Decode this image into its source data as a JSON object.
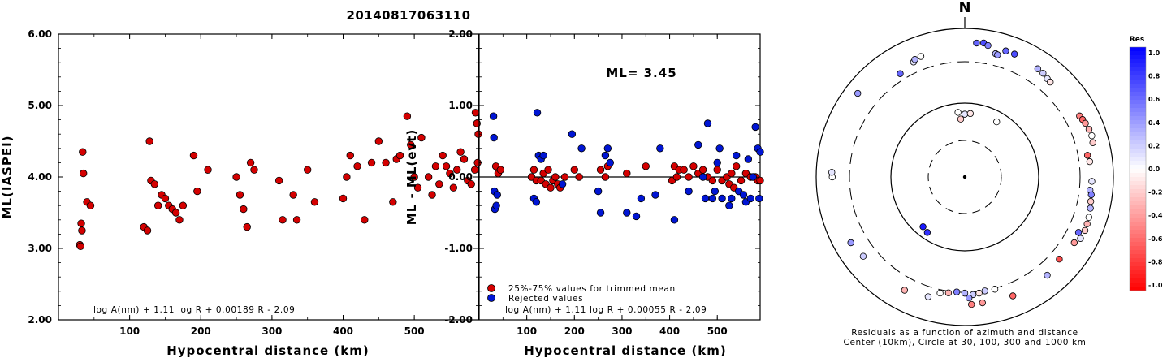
{
  "page_title": "20140817063110",
  "ml_label": "ML= 3.45",
  "colorbar": {
    "title": "Res",
    "ticks": [
      "1.0",
      "0.8",
      "0.6",
      "0.4",
      "0.2",
      "0.0",
      "-0.2",
      "-0.4",
      "-0.6",
      "-0.8",
      "-1.0"
    ]
  },
  "polar": {
    "north_label": "N",
    "caption_line1": "Residuals as a function of azimuth and distance",
    "caption_line2": "Center (10km), Circle at 30, 100, 300 and 1000 km"
  },
  "chart_data": [
    {
      "type": "scatter",
      "xlabel": "Hypocentral distance (km)",
      "ylabel": "ML(IASPEI)",
      "xlim": [
        0,
        590
      ],
      "ylim": [
        2.0,
        6.0
      ],
      "xticks": [
        "100",
        "200",
        "300",
        "400",
        "500"
      ],
      "yticks": [
        "2.00",
        "3.00",
        "4.00",
        "5.00",
        "6.00"
      ],
      "formula": "log A(nm) + 1.11 log R + 0.00189 R - 2.09",
      "series": [
        {
          "color": "#d40000",
          "x": [
            30,
            31,
            32,
            33,
            34,
            35,
            40,
            45,
            120,
            125,
            128,
            130,
            135,
            140,
            145,
            150,
            155,
            160,
            165,
            170,
            175,
            190,
            195,
            210,
            250,
            255,
            260,
            265,
            270,
            275,
            310,
            315,
            330,
            335,
            350,
            360,
            400,
            405,
            410,
            420,
            430,
            440,
            450,
            460,
            470,
            475,
            480,
            490,
            495,
            500,
            505,
            510,
            520,
            525,
            530,
            535,
            540,
            545,
            550,
            555,
            560,
            565,
            570,
            575,
            580,
            585,
            586,
            588,
            589,
            590
          ],
          "y": [
            3.05,
            3.03,
            3.35,
            3.25,
            4.35,
            4.05,
            3.65,
            3.6,
            3.3,
            3.25,
            4.5,
            3.95,
            3.9,
            3.6,
            3.75,
            3.7,
            3.6,
            3.55,
            3.5,
            3.4,
            3.6,
            4.3,
            3.8,
            4.1,
            4.0,
            3.75,
            3.55,
            3.3,
            4.2,
            4.1,
            3.95,
            3.4,
            3.75,
            3.4,
            4.1,
            3.65,
            3.7,
            4.0,
            4.3,
            4.15,
            3.4,
            4.2,
            4.5,
            4.2,
            3.65,
            4.25,
            4.3,
            4.85,
            4.45,
            4.0,
            3.85,
            4.55,
            4.0,
            3.75,
            4.15,
            3.9,
            4.3,
            4.15,
            4.05,
            3.85,
            4.1,
            4.35,
            4.25,
            3.95,
            3.9,
            4.1,
            4.9,
            4.75,
            4.2,
            4.6
          ]
        }
      ]
    },
    {
      "type": "scatter",
      "xlabel": "Hypocentral distance (km)",
      "ylabel": "ML - ML(evt)",
      "xlim": [
        0,
        590
      ],
      "ylim": [
        -2.0,
        2.0
      ],
      "xticks": [
        "100",
        "200",
        "300",
        "400",
        "500"
      ],
      "yticks": [
        "-2.00",
        "-1.00",
        "0.00",
        "1.00",
        "2.00"
      ],
      "formula": "log A(nm) + 1.11 log R + 0.00055 R - 2.09",
      "legend": {
        "position": "bottom-left",
        "entries": [
          "25%-75% values for trimmed mean",
          "Rejected values"
        ]
      },
      "series": [
        {
          "name": "25%-75% values for trimmed mean",
          "color": "#d40000",
          "x": [
            35,
            40,
            45,
            110,
            115,
            120,
            130,
            135,
            140,
            145,
            150,
            155,
            160,
            165,
            170,
            180,
            200,
            210,
            255,
            265,
            270,
            310,
            350,
            405,
            410,
            415,
            420,
            430,
            440,
            450,
            460,
            470,
            480,
            490,
            500,
            510,
            520,
            525,
            530,
            535,
            540,
            550,
            560,
            570,
            580,
            585,
            590
          ],
          "y": [
            0.15,
            0.05,
            0.1,
            0.0,
            0.1,
            -0.05,
            -0.05,
            0.05,
            -0.1,
            0.1,
            -0.15,
            -0.05,
            0.0,
            -0.1,
            -0.15,
            0.0,
            0.1,
            0.0,
            0.1,
            0.0,
            0.15,
            0.05,
            0.15,
            -0.05,
            0.15,
            0.0,
            0.1,
            0.1,
            0.0,
            0.15,
            0.05,
            0.1,
            0.0,
            -0.05,
            0.1,
            -0.05,
            0.0,
            -0.1,
            0.05,
            -0.15,
            0.15,
            -0.05,
            0.05,
            0.0,
            0.0,
            -0.05,
            -0.05
          ]
        },
        {
          "name": "Rejected values",
          "color": "#0015d4",
          "x": [
            30,
            31,
            32,
            33,
            36,
            38,
            115,
            120,
            122,
            125,
            130,
            135,
            175,
            195,
            215,
            250,
            255,
            265,
            270,
            275,
            310,
            330,
            340,
            370,
            380,
            410,
            440,
            460,
            470,
            475,
            480,
            490,
            495,
            500,
            505,
            510,
            525,
            530,
            540,
            545,
            555,
            560,
            565,
            570,
            575,
            580,
            585,
            588,
            590
          ],
          "y": [
            0.85,
            0.55,
            -0.2,
            -0.45,
            -0.4,
            -0.25,
            -0.3,
            -0.35,
            0.9,
            0.3,
            0.25,
            0.3,
            -0.1,
            0.6,
            0.4,
            -0.2,
            -0.5,
            0.3,
            0.4,
            0.2,
            -0.5,
            -0.55,
            -0.3,
            -0.25,
            0.4,
            -0.6,
            -0.2,
            0.45,
            0.0,
            -0.3,
            0.75,
            -0.3,
            -0.2,
            0.2,
            0.4,
            -0.3,
            -0.4,
            -0.3,
            0.3,
            -0.2,
            -0.25,
            -0.35,
            0.25,
            -0.3,
            0.0,
            0.7,
            0.4,
            -0.3,
            0.35
          ]
        }
      ]
    },
    {
      "type": "scatter",
      "subtype": "polar",
      "title": "Residuals as a function of azimuth and distance",
      "radial_circles_km": [
        30,
        100,
        300,
        1000
      ],
      "center_km": 10,
      "color_scale": {
        "title": "Res",
        "min": -1.0,
        "max": 1.0,
        "negative": "#ff0000",
        "zero": "#ffffff",
        "positive": "#0000ff"
      },
      "points": [
        {
          "az": 5,
          "dist": 600,
          "res": 0.6
        },
        {
          "az": 8,
          "dist": 620,
          "res": 0.7
        },
        {
          "az": 10,
          "dist": 580,
          "res": 0.5
        },
        {
          "az": 18,
          "dist": 560,
          "res": 0.6
        },
        {
          "az": 22,
          "dist": 560,
          "res": 0.7
        },
        {
          "az": 14,
          "dist": 460,
          "res": 0.3
        },
        {
          "az": 15,
          "dist": 450,
          "res": 0.4
        },
        {
          "az": 34,
          "dist": 520,
          "res": 0.3
        },
        {
          "az": 37,
          "dist": 510,
          "res": 0.2
        },
        {
          "az": 40,
          "dist": 480,
          "res": 0.1
        },
        {
          "az": 42,
          "dist": 470,
          "res": -0.1
        },
        {
          "az": 336,
          "dist": 440,
          "res": 0.1
        },
        {
          "az": 337,
          "dist": 470,
          "res": 0.3
        },
        {
          "az": 340,
          "dist": 480,
          "res": 0.0
        },
        {
          "az": 328,
          "dist": 380,
          "res": 0.6
        },
        {
          "az": 308,
          "dist": 630,
          "res": 0.4
        },
        {
          "az": 354,
          "dist": 75,
          "res": 0.0
        },
        {
          "az": 0,
          "dist": 70,
          "res": 0.1
        },
        {
          "az": 5,
          "dist": 72,
          "res": -0.1
        },
        {
          "az": 356,
          "dist": 60,
          "res": -0.2
        },
        {
          "az": 30,
          "dist": 72,
          "res": 0.0
        },
        {
          "az": 62,
          "dist": 510,
          "res": -0.5
        },
        {
          "az": 64,
          "dist": 530,
          "res": -0.6
        },
        {
          "az": 66,
          "dist": 550,
          "res": -0.4
        },
        {
          "az": 69,
          "dist": 570,
          "res": -0.3
        },
        {
          "az": 72,
          "dist": 580,
          "res": 0.0
        },
        {
          "az": 75,
          "dist": 560,
          "res": -0.2
        },
        {
          "az": 80,
          "dist": 420,
          "res": -0.6
        },
        {
          "az": 83,
          "dist": 440,
          "res": -0.1
        },
        {
          "az": 92,
          "dist": 460,
          "res": 0.1
        },
        {
          "az": 96,
          "dist": 440,
          "res": 0.3
        },
        {
          "az": 98,
          "dist": 470,
          "res": 0.5
        },
        {
          "az": 101,
          "dist": 480,
          "res": -0.2
        },
        {
          "az": 104,
          "dist": 500,
          "res": 0.3
        },
        {
          "az": 108,
          "dist": 520,
          "res": 0.0
        },
        {
          "az": 111,
          "dist": 530,
          "res": -0.3
        },
        {
          "az": 114,
          "dist": 540,
          "res": -0.2
        },
        {
          "az": 118,
          "dist": 530,
          "res": 0.1
        },
        {
          "az": 121,
          "dist": 470,
          "res": -0.4
        },
        {
          "az": 116,
          "dist": 450,
          "res": 0.6
        },
        {
          "az": 131,
          "dist": 430,
          "res": -0.7
        },
        {
          "az": 140,
          "dist": 480,
          "res": 0.3
        },
        {
          "az": 165,
          "dist": 310,
          "res": 0.0
        },
        {
          "az": 170,
          "dist": 305,
          "res": 0.2
        },
        {
          "az": 173,
          "dist": 320,
          "res": -0.1
        },
        {
          "az": 176,
          "dist": 330,
          "res": 0.2
        },
        {
          "az": 180,
          "dist": 310,
          "res": 0.3
        },
        {
          "az": 184,
          "dist": 300,
          "res": 0.5
        },
        {
          "az": 188,
          "dist": 320,
          "res": -0.3
        },
        {
          "az": 192,
          "dist": 340,
          "res": 0.0
        },
        {
          "az": 178,
          "dist": 370,
          "res": 0.4
        },
        {
          "az": 172,
          "dist": 460,
          "res": -0.4
        },
        {
          "az": 177,
          "dist": 470,
          "res": -0.5
        },
        {
          "az": 158,
          "dist": 480,
          "res": -0.6
        },
        {
          "az": 197,
          "dist": 430,
          "res": 0.1
        },
        {
          "az": 208,
          "dist": 480,
          "res": -0.3
        },
        {
          "az": 232,
          "dist": 490,
          "res": 0.2
        },
        {
          "az": 240,
          "dist": 540,
          "res": 0.4
        },
        {
          "az": 214,
          "dist": 80,
          "res": 0.8
        },
        {
          "az": 220,
          "dist": 75,
          "res": 0.9
        },
        {
          "az": 270,
          "dist": 560,
          "res": 0.0
        },
        {
          "az": 272,
          "dist": 570,
          "res": 0.1
        }
      ]
    }
  ]
}
